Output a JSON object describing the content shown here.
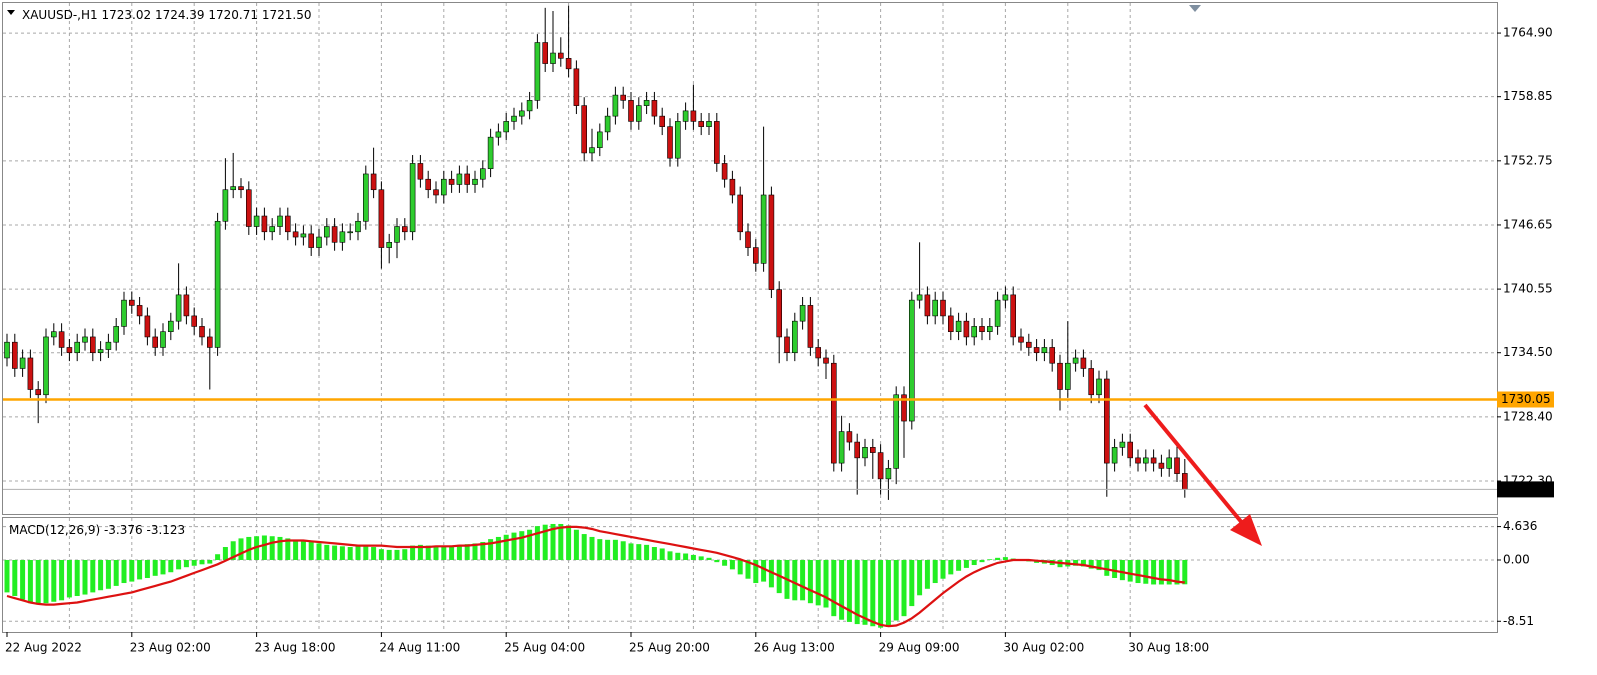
{
  "chart_data": {
    "type": "candlestick",
    "symbol": "XAUUSD-,H1",
    "last_candle_labels": [
      "1723.02",
      "1724.39",
      "1720.71",
      "1721.50"
    ],
    "categories": [
      "22 Aug 2022",
      null,
      null,
      null,
      null,
      null,
      null,
      null,
      null,
      null,
      null,
      null,
      null,
      null,
      null,
      null,
      "23 Aug 02:00",
      null,
      null,
      null,
      null,
      null,
      null,
      null,
      null,
      null,
      null,
      null,
      null,
      null,
      null,
      null,
      "23 Aug 18:00",
      null,
      null,
      null,
      null,
      null,
      null,
      null,
      null,
      null,
      null,
      null,
      null,
      null,
      null,
      null,
      "24 Aug 11:00",
      null,
      null,
      null,
      null,
      null,
      null,
      null,
      null,
      null,
      null,
      null,
      null,
      null,
      null,
      null,
      "25 Aug 04:00",
      null,
      null,
      null,
      null,
      null,
      null,
      null,
      null,
      null,
      null,
      null,
      null,
      null,
      null,
      null,
      "25 Aug 20:00",
      null,
      null,
      null,
      null,
      null,
      null,
      null,
      null,
      null,
      null,
      null,
      null,
      null,
      null,
      null,
      "26 Aug 13:00",
      null,
      null,
      null,
      null,
      null,
      null,
      null,
      null,
      null,
      null,
      null,
      null,
      null,
      null,
      null,
      "29 Aug 09:00",
      null,
      null,
      null,
      null,
      null,
      null,
      null,
      null,
      null,
      null,
      null,
      null,
      null,
      null,
      null,
      "30 Aug 02:00",
      null,
      null,
      null,
      null,
      null,
      null,
      null,
      null,
      null,
      null,
      null,
      null,
      null,
      null,
      null,
      "30 Aug 18:00",
      null,
      null,
      null,
      null,
      null,
      null,
      null
    ],
    "candles": [
      [
        1734.0,
        1736.3,
        1733.2,
        1735.5
      ],
      [
        1735.5,
        1736.3,
        1732.2,
        1733.0
      ],
      [
        1733.0,
        1734.8,
        1732.2,
        1734.0
      ],
      [
        1734.0,
        1734.8,
        1730.2,
        1731.0
      ],
      [
        1731.0,
        1731.8,
        1727.8,
        1730.5
      ],
      [
        1730.5,
        1736.8,
        1729.7,
        1736.0
      ],
      [
        1736.0,
        1737.3,
        1735.2,
        1736.5
      ],
      [
        1736.5,
        1737.3,
        1734.2,
        1735.0
      ],
      [
        1735.0,
        1735.8,
        1733.7,
        1734.5
      ],
      [
        1734.5,
        1736.3,
        1733.7,
        1735.5
      ],
      [
        1735.5,
        1736.8,
        1734.7,
        1736.0
      ],
      [
        1736.0,
        1736.8,
        1733.7,
        1734.5
      ],
      [
        1734.5,
        1735.6,
        1733.7,
        1734.8
      ],
      [
        1734.8,
        1736.3,
        1734.0,
        1735.5
      ],
      [
        1735.5,
        1737.8,
        1734.7,
        1737.0
      ],
      [
        1737.0,
        1740.3,
        1736.2,
        1739.5
      ],
      [
        1739.5,
        1740.3,
        1738.2,
        1739.0
      ],
      [
        1739.0,
        1739.8,
        1737.2,
        1738.0
      ],
      [
        1738.0,
        1738.8,
        1735.2,
        1736.0
      ],
      [
        1736.0,
        1736.8,
        1734.2,
        1735.0
      ],
      [
        1735.0,
        1737.3,
        1734.2,
        1736.5
      ],
      [
        1736.5,
        1738.3,
        1735.7,
        1737.5
      ],
      [
        1737.5,
        1743.0,
        1736.7,
        1740.0
      ],
      [
        1740.0,
        1740.8,
        1737.2,
        1738.0
      ],
      [
        1738.0,
        1738.8,
        1736.2,
        1737.0
      ],
      [
        1737.0,
        1737.8,
        1735.2,
        1736.0
      ],
      [
        1736.0,
        1736.8,
        1731.0,
        1735.0
      ],
      [
        1735.0,
        1747.8,
        1734.2,
        1747.0
      ],
      [
        1747.0,
        1753.0,
        1746.2,
        1750.0
      ],
      [
        1750.0,
        1753.5,
        1749.2,
        1750.3
      ],
      [
        1750.3,
        1751.1,
        1749.2,
        1750.0
      ],
      [
        1750.0,
        1750.8,
        1745.7,
        1746.5
      ],
      [
        1746.5,
        1748.3,
        1745.7,
        1747.5
      ],
      [
        1747.5,
        1748.3,
        1745.2,
        1746.0
      ],
      [
        1746.0,
        1747.3,
        1745.2,
        1746.5
      ],
      [
        1746.5,
        1748.3,
        1745.7,
        1747.5
      ],
      [
        1747.5,
        1748.3,
        1745.2,
        1746.0
      ],
      [
        1746.0,
        1746.8,
        1744.7,
        1745.5
      ],
      [
        1745.5,
        1746.6,
        1744.7,
        1745.8
      ],
      [
        1745.8,
        1746.6,
        1743.7,
        1744.5
      ],
      [
        1744.5,
        1746.3,
        1743.7,
        1745.5
      ],
      [
        1745.5,
        1747.3,
        1744.7,
        1746.5
      ],
      [
        1746.5,
        1747.3,
        1744.2,
        1745.0
      ],
      [
        1745.0,
        1746.8,
        1744.2,
        1746.0
      ],
      [
        1746.0,
        1746.8,
        1745.2,
        1746.0
      ],
      [
        1746.0,
        1747.8,
        1745.2,
        1747.0
      ],
      [
        1747.0,
        1752.3,
        1746.2,
        1751.5
      ],
      [
        1751.5,
        1754.0,
        1749.2,
        1750.0
      ],
      [
        1750.0,
        1750.8,
        1742.5,
        1744.5
      ],
      [
        1744.5,
        1745.8,
        1743.0,
        1745.0
      ],
      [
        1745.0,
        1747.3,
        1743.5,
        1746.5
      ],
      [
        1746.5,
        1747.3,
        1745.2,
        1746.0
      ],
      [
        1746.0,
        1753.3,
        1745.2,
        1752.5
      ],
      [
        1752.5,
        1753.3,
        1750.2,
        1751.0
      ],
      [
        1751.0,
        1751.8,
        1749.2,
        1750.0
      ],
      [
        1750.0,
        1750.8,
        1748.7,
        1749.5
      ],
      [
        1749.5,
        1751.8,
        1748.7,
        1751.0
      ],
      [
        1751.0,
        1751.8,
        1749.7,
        1750.5
      ],
      [
        1750.5,
        1752.3,
        1749.7,
        1751.5
      ],
      [
        1751.5,
        1752.3,
        1749.7,
        1750.5
      ],
      [
        1750.5,
        1751.8,
        1749.7,
        1751.0
      ],
      [
        1751.0,
        1752.8,
        1750.2,
        1752.0
      ],
      [
        1752.0,
        1755.8,
        1751.2,
        1755.0
      ],
      [
        1755.0,
        1756.3,
        1754.2,
        1755.5
      ],
      [
        1755.5,
        1757.3,
        1754.7,
        1756.5
      ],
      [
        1756.5,
        1757.8,
        1755.7,
        1757.0
      ],
      [
        1757.0,
        1758.3,
        1756.2,
        1757.5
      ],
      [
        1757.5,
        1759.3,
        1756.7,
        1758.5
      ],
      [
        1758.5,
        1764.8,
        1757.7,
        1764.0
      ],
      [
        1764.0,
        1767.3,
        1761.2,
        1762.0
      ],
      [
        1762.0,
        1767.0,
        1761.2,
        1763.0
      ],
      [
        1763.0,
        1764.5,
        1761.7,
        1762.5
      ],
      [
        1762.5,
        1767.5,
        1760.7,
        1761.5
      ],
      [
        1761.5,
        1762.3,
        1757.2,
        1758.0
      ],
      [
        1758.0,
        1758.8,
        1752.7,
        1753.5
      ],
      [
        1753.5,
        1755.8,
        1752.7,
        1754.0
      ],
      [
        1754.0,
        1756.3,
        1753.2,
        1755.5
      ],
      [
        1755.5,
        1757.8,
        1754.7,
        1757.0
      ],
      [
        1757.0,
        1759.8,
        1756.2,
        1759.0
      ],
      [
        1759.0,
        1759.8,
        1757.7,
        1758.5
      ],
      [
        1758.5,
        1759.3,
        1755.7,
        1756.5
      ],
      [
        1756.5,
        1758.8,
        1755.7,
        1758.0
      ],
      [
        1758.0,
        1759.3,
        1757.2,
        1758.5
      ],
      [
        1758.5,
        1759.3,
        1756.2,
        1757.0
      ],
      [
        1757.0,
        1757.8,
        1755.2,
        1756.0
      ],
      [
        1756.0,
        1756.8,
        1752.2,
        1753.0
      ],
      [
        1753.0,
        1757.3,
        1752.2,
        1756.5
      ],
      [
        1756.5,
        1758.3,
        1755.7,
        1757.5
      ],
      [
        1757.5,
        1760.0,
        1755.7,
        1756.5
      ],
      [
        1756.5,
        1757.3,
        1755.2,
        1756.0
      ],
      [
        1756.0,
        1757.3,
        1755.2,
        1756.5
      ],
      [
        1756.5,
        1757.3,
        1751.7,
        1752.5
      ],
      [
        1752.5,
        1753.3,
        1750.2,
        1751.0
      ],
      [
        1751.0,
        1751.8,
        1748.7,
        1749.5
      ],
      [
        1749.5,
        1750.3,
        1745.2,
        1746.0
      ],
      [
        1746.0,
        1746.8,
        1743.7,
        1744.5
      ],
      [
        1744.5,
        1745.3,
        1742.2,
        1743.0
      ],
      [
        1743.0,
        1756.0,
        1742.2,
        1749.5
      ],
      [
        1749.5,
        1750.3,
        1739.7,
        1740.5
      ],
      [
        1740.5,
        1741.3,
        1733.5,
        1736.0
      ],
      [
        1736.0,
        1736.8,
        1733.7,
        1734.5
      ],
      [
        1734.5,
        1738.3,
        1733.7,
        1737.5
      ],
      [
        1737.5,
        1739.8,
        1736.7,
        1739.0
      ],
      [
        1739.0,
        1739.8,
        1734.2,
        1735.0
      ],
      [
        1735.0,
        1735.8,
        1733.2,
        1734.0
      ],
      [
        1734.0,
        1734.8,
        1732.0,
        1733.5
      ],
      [
        1733.5,
        1734.3,
        1723.2,
        1724.0
      ],
      [
        1724.0,
        1728.5,
        1723.2,
        1727.0
      ],
      [
        1727.0,
        1727.8,
        1725.2,
        1726.0
      ],
      [
        1726.0,
        1726.8,
        1721.0,
        1724.5
      ],
      [
        1724.5,
        1726.3,
        1723.7,
        1725.5
      ],
      [
        1725.5,
        1726.3,
        1722.5,
        1725.0
      ],
      [
        1725.0,
        1725.8,
        1721.0,
        1722.5
      ],
      [
        1722.5,
        1724.3,
        1720.5,
        1723.5
      ],
      [
        1723.5,
        1731.3,
        1722.0,
        1730.5
      ],
      [
        1730.5,
        1731.3,
        1724.5,
        1728.0
      ],
      [
        1728.0,
        1740.3,
        1727.2,
        1739.5
      ],
      [
        1739.5,
        1745.0,
        1738.7,
        1740.0
      ],
      [
        1740.0,
        1740.8,
        1737.2,
        1738.0
      ],
      [
        1738.0,
        1740.3,
        1737.2,
        1739.5
      ],
      [
        1739.5,
        1740.3,
        1737.2,
        1738.0
      ],
      [
        1738.0,
        1738.8,
        1735.7,
        1736.5
      ],
      [
        1736.5,
        1738.3,
        1735.7,
        1737.5
      ],
      [
        1737.5,
        1738.3,
        1735.2,
        1736.0
      ],
      [
        1736.0,
        1737.8,
        1735.2,
        1737.0
      ],
      [
        1737.0,
        1737.8,
        1735.7,
        1736.5
      ],
      [
        1736.5,
        1737.8,
        1735.7,
        1737.0
      ],
      [
        1737.0,
        1740.3,
        1736.2,
        1739.5
      ],
      [
        1739.5,
        1740.8,
        1738.7,
        1740.0
      ],
      [
        1740.0,
        1740.8,
        1735.2,
        1736.0
      ],
      [
        1736.0,
        1736.8,
        1734.7,
        1735.5
      ],
      [
        1735.5,
        1736.3,
        1734.2,
        1735.0
      ],
      [
        1735.0,
        1735.8,
        1733.7,
        1734.5
      ],
      [
        1734.5,
        1735.8,
        1733.7,
        1735.0
      ],
      [
        1735.0,
        1735.8,
        1732.7,
        1733.5
      ],
      [
        1733.5,
        1734.3,
        1729.0,
        1731.0
      ],
      [
        1731.0,
        1737.5,
        1730.2,
        1733.5
      ],
      [
        1733.5,
        1734.8,
        1732.7,
        1734.0
      ],
      [
        1734.0,
        1734.8,
        1732.2,
        1733.0
      ],
      [
        1733.0,
        1733.8,
        1729.7,
        1730.5
      ],
      [
        1730.5,
        1732.8,
        1729.7,
        1732.0
      ],
      [
        1732.0,
        1732.8,
        1720.8,
        1724.0
      ],
      [
        1724.0,
        1726.3,
        1723.2,
        1725.5
      ],
      [
        1725.5,
        1726.8,
        1724.7,
        1726.0
      ],
      [
        1726.0,
        1726.8,
        1723.7,
        1724.5
      ],
      [
        1724.5,
        1725.3,
        1723.2,
        1724.0
      ],
      [
        1724.0,
        1725.3,
        1723.2,
        1724.5
      ],
      [
        1724.5,
        1725.3,
        1723.2,
        1724.0
      ],
      [
        1724.0,
        1724.8,
        1722.7,
        1723.5
      ],
      [
        1723.5,
        1725.3,
        1722.7,
        1724.5
      ],
      [
        1724.5,
        1726.0,
        1722.2,
        1723.0
      ],
      [
        1723.02,
        1724.39,
        1720.71,
        1721.5
      ]
    ],
    "up_color": "#2ecc2e",
    "down_color": "#cc1111",
    "ylim": [
      1719.16,
      1767.76
    ],
    "yticks": [
      {
        "value": 1764.9,
        "label": "1764.90"
      },
      1758.85,
      1752.75,
      1746.65,
      1740.55,
      {
        "value": 1734.5,
        "label": "1734.50"
      },
      {
        "value": 1728.4,
        "label": "1728.40"
      },
      {
        "value": 1722.3,
        "label": "1722.30"
      }
    ],
    "grid": true,
    "hlines": [
      {
        "value": 1730.05,
        "label": "1730.05",
        "color": "#ffa500"
      }
    ],
    "last_price": {
      "value": 1721.5,
      "label": "1721.50"
    },
    "macd": {
      "type": "macd",
      "title": "MACD(12,26,9)",
      "histogram": [
        -4.5,
        -5.0,
        -5.5,
        -6.0,
        -6.2,
        -6.0,
        -5.8,
        -5.6,
        -5.2,
        -5.0,
        -4.8,
        -4.5,
        -4.2,
        -4.0,
        -3.6,
        -3.2,
        -3.0,
        -2.7,
        -2.5,
        -2.2,
        -2.0,
        -1.7,
        -1.3,
        -1.0,
        -0.8,
        -0.6,
        -0.5,
        0.8,
        1.8,
        2.6,
        3.0,
        3.2,
        3.3,
        3.4,
        3.3,
        3.2,
        3.0,
        2.8,
        2.7,
        2.5,
        2.3,
        2.1,
        2.0,
        1.9,
        1.8,
        1.9,
        2.1,
        1.8,
        1.5,
        1.4,
        1.4,
        1.5,
        2.0,
        2.1,
        2.0,
        1.9,
        1.9,
        2.0,
        2.1,
        2.2,
        2.3,
        2.5,
        2.9,
        3.2,
        3.5,
        3.8,
        4.0,
        4.2,
        4.7,
        4.9,
        5.0,
        5.0,
        4.8,
        4.2,
        3.6,
        3.2,
        2.9,
        2.8,
        2.8,
        2.6,
        2.3,
        2.2,
        2.1,
        1.8,
        1.6,
        1.2,
        1.0,
        0.9,
        0.7,
        0.5,
        0.3,
        -0.3,
        -0.8,
        -1.3,
        -2.0,
        -2.6,
        -3.2,
        -3.0,
        -3.8,
        -4.6,
        -5.4,
        -5.6,
        -5.6,
        -6.0,
        -6.3,
        -6.6,
        -7.8,
        -8.3,
        -8.6,
        -8.9,
        -9.0,
        -9.2,
        -9.4,
        -9.3,
        -8.4,
        -7.8,
        -6.4,
        -4.9,
        -4.0,
        -3.2,
        -2.6,
        -2.0,
        -1.5,
        -1.1,
        -0.7,
        -0.3,
        0.1,
        0.3,
        0.4,
        0.2,
        0.0,
        -0.2,
        -0.4,
        -0.5,
        -0.7,
        -1.0,
        -0.9,
        -0.8,
        -0.9,
        -1.2,
        -1.4,
        -2.2,
        -2.5,
        -2.8,
        -3.0,
        -3.2,
        -3.3,
        -3.4,
        -3.4,
        -3.4,
        -3.4,
        -3.376
      ],
      "signal": [
        -5.0,
        -5.3,
        -5.6,
        -5.9,
        -6.1,
        -6.2,
        -6.2,
        -6.1,
        -6.0,
        -5.9,
        -5.7,
        -5.5,
        -5.3,
        -5.1,
        -4.9,
        -4.7,
        -4.5,
        -4.2,
        -3.9,
        -3.6,
        -3.3,
        -3.0,
        -2.6,
        -2.2,
        -1.8,
        -1.4,
        -1.0,
        -0.6,
        -0.1,
        0.4,
        0.9,
        1.4,
        1.8,
        2.1,
        2.4,
        2.6,
        2.7,
        2.7,
        2.7,
        2.6,
        2.5,
        2.4,
        2.3,
        2.2,
        2.1,
        2.0,
        2.0,
        2.0,
        2.0,
        1.9,
        1.8,
        1.8,
        1.8,
        1.8,
        1.8,
        1.9,
        1.9,
        1.9,
        2.0,
        2.0,
        2.1,
        2.2,
        2.3,
        2.5,
        2.7,
        2.9,
        3.1,
        3.4,
        3.7,
        4.0,
        4.3,
        4.5,
        4.6,
        4.6,
        4.5,
        4.3,
        4.0,
        3.8,
        3.6,
        3.4,
        3.2,
        3.0,
        2.8,
        2.6,
        2.4,
        2.2,
        2.0,
        1.8,
        1.6,
        1.4,
        1.2,
        1.0,
        0.7,
        0.4,
        0.1,
        -0.3,
        -0.7,
        -1.2,
        -1.7,
        -2.2,
        -2.7,
        -3.2,
        -3.7,
        -4.2,
        -4.7,
        -5.2,
        -5.8,
        -6.4,
        -7.0,
        -7.6,
        -8.1,
        -8.6,
        -9.0,
        -9.2,
        -9.1,
        -8.7,
        -8.1,
        -7.3,
        -6.4,
        -5.5,
        -4.6,
        -3.8,
        -3.0,
        -2.3,
        -1.7,
        -1.2,
        -0.8,
        -0.4,
        -0.2,
        0.0,
        0.0,
        0.0,
        -0.1,
        -0.2,
        -0.3,
        -0.4,
        -0.5,
        -0.6,
        -0.7,
        -0.9,
        -1.1,
        -1.3,
        -1.5,
        -1.7,
        -1.9,
        -2.1,
        -2.3,
        -2.5,
        -2.7,
        -2.8,
        -3.0,
        -3.123
      ],
      "histogram_color": "#22ee22",
      "signal_color": "#dd1111",
      "ylim": [
        -10,
        5.83
      ],
      "yticks": [
        4.636,
        {
          "value": 0,
          "label": "0.00"
        },
        -8.51
      ]
    }
  }
}
